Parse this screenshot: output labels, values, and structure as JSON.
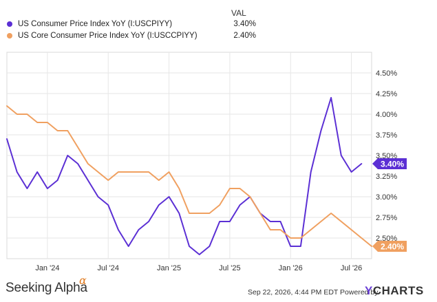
{
  "legend": {
    "header": "VAL",
    "items": [
      {
        "name": "US Consumer Price Index YoY (I:USCPIYY)",
        "value": "3.40%",
        "color": "#5b2fd4"
      },
      {
        "name": "US Core Consumer Price Index YoY (I:USCCPIYY)",
        "value": "2.40%",
        "color": "#f0a060"
      }
    ]
  },
  "footer": {
    "brand": "Seeking Alpha",
    "brand_mark": "α",
    "timestamp": "Sep 22, 2026, 4:44 PM EDT Powered by",
    "logo_y": "Y",
    "logo_rest": "CHARTS"
  },
  "chart_data": {
    "type": "line",
    "x_tick_labels": [
      "Jan '24",
      "Jul '24",
      "Jan '25",
      "Jul '25",
      "Jan '26",
      "Jul '26"
    ],
    "y_tick_labels": [
      "4.50%",
      "4.25%",
      "4.00%",
      "3.75%",
      "3.50%",
      "3.25%",
      "3.00%",
      "2.75%",
      "2.50%"
    ],
    "ylim": [
      2.25,
      4.75
    ],
    "grid": true,
    "x": [
      "2023-09",
      "2023-10",
      "2023-11",
      "2023-12",
      "2024-01",
      "2024-02",
      "2024-03",
      "2024-04",
      "2024-05",
      "2024-06",
      "2024-07",
      "2024-08",
      "2024-09",
      "2024-10",
      "2024-11",
      "2024-12",
      "2025-01",
      "2025-02",
      "2025-03",
      "2025-04",
      "2025-05",
      "2025-06",
      "2025-07",
      "2025-08",
      "2025-09",
      "2025-10",
      "2025-11",
      "2025-12",
      "2026-01",
      "2026-02",
      "2026-03",
      "2026-04",
      "2026-05",
      "2026-06",
      "2026-07",
      "2026-08",
      "2026-09"
    ],
    "series": [
      {
        "name": "US Consumer Price Index YoY (I:USCPIYY)",
        "color": "#5b2fd4",
        "values": [
          3.7,
          3.3,
          3.1,
          3.3,
          3.1,
          3.2,
          3.5,
          3.4,
          3.2,
          3.0,
          2.9,
          2.6,
          2.4,
          2.6,
          2.7,
          2.9,
          3.0,
          2.8,
          2.4,
          2.3,
          2.4,
          2.7,
          2.7,
          2.9,
          3.0,
          2.8,
          2.7,
          2.7,
          2.4,
          2.4,
          3.3,
          3.8,
          4.2,
          3.5,
          3.3,
          3.4,
          null
        ],
        "last_value_label": "3.40%"
      },
      {
        "name": "US Core Consumer Price Index YoY (I:USCCPIYY)",
        "color": "#f0a060",
        "values": [
          4.1,
          4.0,
          4.0,
          3.9,
          3.9,
          3.8,
          3.8,
          3.6,
          3.4,
          3.3,
          3.2,
          3.3,
          3.3,
          3.3,
          3.3,
          3.2,
          3.3,
          3.1,
          2.8,
          2.8,
          2.8,
          2.9,
          3.1,
          3.1,
          3.0,
          2.8,
          2.6,
          2.6,
          2.5,
          2.5,
          null,
          null,
          2.8,
          null,
          2.6,
          2.5,
          2.4
        ],
        "last_value_label": "2.40%"
      }
    ]
  }
}
